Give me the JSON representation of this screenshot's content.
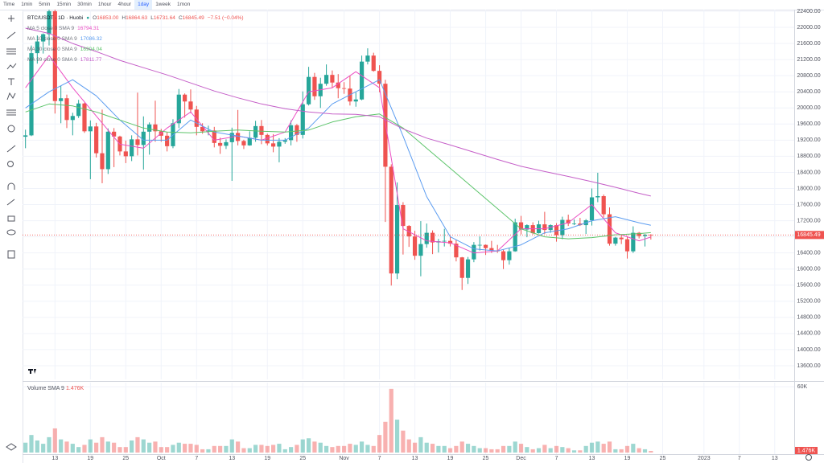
{
  "toolbar": {
    "intervals": [
      "Time",
      "1min",
      "5min",
      "15min",
      "30min",
      "1hour",
      "4hour",
      "1day",
      "1week",
      "1mon"
    ],
    "selected": 7
  },
  "chart_data": {
    "type": "candlestick",
    "title": "BTC/USDT · 1D · Huobi",
    "ohlc": [
      {
        "label": "O",
        "value": "16853.00"
      },
      {
        "label": "H",
        "value": "16864.63"
      },
      {
        "label": "L",
        "value": "16731.64"
      },
      {
        "label": "C",
        "value": "16845.49"
      }
    ],
    "change": "−7.51 (−0.04%)",
    "up_color": "#26a69a",
    "down_color": "#ef5350",
    "open": [
      19285,
      19319,
      21360,
      21650,
      21830,
      22400,
      20170,
      20240,
      19700,
      19800,
      20110,
      19420,
      19540,
      18875,
      18480,
      19410,
      19290,
      18920,
      18800,
      19220,
      19080,
      19410,
      19590,
      19420,
      19310,
      19050,
      19620,
      20330,
      20160,
      19960,
      19530,
      19420,
      19440,
      19130,
      19060,
      19150,
      19380,
      19180,
      19070,
      19260,
      19550,
      19330,
      19120,
      19040,
      19160,
      19200,
      19570,
      19330,
      20090,
      20770,
      20290,
      20600,
      20820,
      20630,
      20490,
      20480,
      20160,
      20210,
      21150,
      21300,
      20920,
      20600,
      18540,
      15890,
      17590,
      17070,
      16810,
      16330,
      16620,
      16900,
      16660,
      16690,
      16700,
      16630,
      16290,
      15780,
      16240,
      16600,
      16600,
      16520,
      16460,
      16440,
      16220,
      16440,
      17160,
      16980,
      17090,
      16890,
      17110,
      16970,
      17090,
      16840,
      17220,
      17130,
      17130,
      17090,
      17210,
      17780,
      17810,
      17360,
      16630,
      16780,
      16740,
      16440,
      16900,
      16820,
      16853
    ],
    "high": [
      19460,
      21550,
      21800,
      21850,
      22490,
      22800,
      20550,
      20330,
      19880,
      20200,
      20130,
      19690,
      19630,
      19960,
      19490,
      19500,
      19310,
      19190,
      19320,
      20380,
      19790,
      19640,
      20180,
      19480,
      19400,
      19720,
      20470,
      20360,
      20460,
      20050,
      19620,
      19560,
      19530,
      19260,
      19220,
      19510,
      19950,
      19210,
      19420,
      19680,
      19700,
      19360,
      19350,
      19250,
      19250,
      19690,
      19600,
      20410,
      21020,
      20870,
      20750,
      21080,
      20930,
      20840,
      20640,
      20800,
      20390,
      21300,
      21480,
      21370,
      21060,
      20700,
      18600,
      18150,
      17660,
      17090,
      16950,
      17190,
      17130,
      16960,
      16750,
      17000,
      16820,
      16730,
      16300,
      16300,
      16670,
      16810,
      16610,
      16700,
      16600,
      16480,
      16530,
      17250,
      17320,
      17110,
      17160,
      17200,
      17420,
      17110,
      17140,
      17300,
      17350,
      17230,
      17270,
      17240,
      18000,
      18390,
      17850,
      17530,
      16800,
      16860,
      16820,
      17060,
      16920,
      16870,
      16864.63
    ],
    "low": [
      19000,
      19300,
      21100,
      21350,
      21550,
      19860,
      19620,
      19500,
      19320,
      19750,
      19380,
      18230,
      18770,
      18130,
      18360,
      18530,
      18820,
      18630,
      18680,
      18820,
      18470,
      18840,
      19160,
      19160,
      18920,
      19000,
      19500,
      19760,
      19870,
      19320,
      19360,
      19320,
      19020,
      18860,
      18980,
      18190,
      19070,
      18980,
      19060,
      19160,
      19100,
      19070,
      18900,
      18650,
      19110,
      19070,
      19160,
      19240,
      20060,
      20200,
      20000,
      20550,
      20500,
      20240,
      20350,
      20060,
      20030,
      20190,
      21080,
      20900,
      20390,
      17170,
      15590,
      15750,
      16360,
      16550,
      16230,
      15820,
      16530,
      16370,
      16410,
      16560,
      16560,
      16190,
      15480,
      15630,
      16170,
      16460,
      16350,
      16400,
      16400,
      16000,
      16110,
      16430,
      16860,
      16790,
      16860,
      16880,
      16870,
      16900,
      16680,
      16740,
      17070,
      17090,
      17070,
      16870,
      17080,
      17660,
      17280,
      16580,
      16580,
      16620,
      16260,
      16400,
      16760,
      16560,
      16731.64
    ],
    "close": [
      19319,
      21360,
      21650,
      21830,
      22400,
      20170,
      20240,
      19700,
      19800,
      20110,
      19420,
      19540,
      18875,
      18480,
      19410,
      19290,
      18920,
      18800,
      19220,
      19080,
      19410,
      19590,
      19420,
      19310,
      19050,
      19620,
      20330,
      20160,
      19960,
      19530,
      19420,
      19440,
      19130,
      19060,
      19150,
      19380,
      19180,
      19070,
      19260,
      19550,
      19330,
      19120,
      19040,
      19160,
      19200,
      19570,
      19330,
      20090,
      20770,
      20290,
      20600,
      20820,
      20630,
      20490,
      20480,
      20160,
      20210,
      21150,
      21300,
      20920,
      20600,
      18540,
      15890,
      17590,
      17070,
      16810,
      16330,
      16620,
      16900,
      16660,
      16690,
      16700,
      16630,
      16290,
      15780,
      16240,
      16600,
      16600,
      16520,
      16460,
      16440,
      16220,
      16440,
      17160,
      16980,
      17090,
      16890,
      17110,
      16970,
      17090,
      16840,
      17220,
      17130,
      17130,
      17090,
      17210,
      17780,
      17810,
      17360,
      16630,
      16780,
      16740,
      16440,
      16900,
      16820,
      16853,
      16845.49
    ],
    "volume": [
      9000,
      16000,
      11000,
      8000,
      14000,
      22000,
      12000,
      10000,
      8000,
      5000,
      7000,
      12000,
      9000,
      14000,
      10000,
      9000,
      5000,
      5000,
      11000,
      14000,
      12000,
      9000,
      10000,
      5000,
      5000,
      7000,
      9000,
      8000,
      8000,
      7000,
      3000,
      3000,
      6000,
      6000,
      6000,
      12000,
      10000,
      4000,
      4000,
      7000,
      7000,
      6000,
      7000,
      8000,
      3000,
      5000,
      7000,
      12000,
      13000,
      10000,
      9000,
      6000,
      5000,
      6000,
      6000,
      8000,
      7000,
      10000,
      7000,
      6000,
      16000,
      28000,
      58000,
      30000,
      20000,
      12000,
      9000,
      14000,
      9000,
      8000,
      6000,
      6000,
      4000,
      6000,
      10000,
      8000,
      6000,
      4000,
      4000,
      3000,
      3000,
      6000,
      6000,
      10000,
      8000,
      5000,
      3000,
      4000,
      7000,
      4000,
      6000,
      5000,
      4000,
      2000,
      2000,
      6000,
      9000,
      10000,
      8000,
      10000,
      3000,
      3000,
      6000,
      8000,
      4000,
      3000,
      1476
    ],
    "volume_sma": {
      "name": "Volume SMA 9",
      "value": "1.476K"
    },
    "series": [
      {
        "name": "MA 5 close 0 SMA 9",
        "color": "#ec4fc3",
        "x": [
          0,
          4,
          8,
          12,
          16,
          20,
          24,
          28,
          32,
          36,
          40,
          44,
          48,
          52,
          56,
          60,
          64,
          68,
          72,
          76,
          80,
          84,
          88,
          92,
          96,
          100,
          104,
          106
        ],
        "values": [
          20500,
          21300,
          20500,
          19800,
          19100,
          19000,
          19500,
          19900,
          19200,
          19300,
          19200,
          19400,
          20400,
          20500,
          20900,
          20500,
          17000,
          16700,
          16650,
          16400,
          16450,
          17000,
          17000,
          17150,
          17600,
          16900,
          16700,
          16794.31
        ]
      },
      {
        "name": "MA 10 close 0 SMA 9",
        "color": "#5b9cf0",
        "x": [
          0,
          4,
          8,
          12,
          16,
          20,
          24,
          28,
          32,
          36,
          40,
          44,
          48,
          52,
          56,
          60,
          64,
          68,
          72,
          76,
          80,
          84,
          88,
          92,
          96,
          100,
          104,
          106
        ],
        "values": [
          20000,
          20400,
          20700,
          20300,
          19700,
          19200,
          19200,
          19700,
          19400,
          19300,
          19200,
          19200,
          19500,
          20100,
          20400,
          20700,
          19300,
          17800,
          16800,
          16500,
          16450,
          16600,
          16900,
          17000,
          17200,
          17300,
          17150,
          17086.32
        ]
      },
      {
        "name": "MA 30 close 0 SMA 9",
        "color": "#5cc46a",
        "x": [
          0,
          4,
          8,
          12,
          16,
          20,
          24,
          28,
          32,
          36,
          40,
          44,
          48,
          52,
          56,
          60,
          64,
          68,
          72,
          76,
          80,
          84,
          88,
          92,
          96,
          100,
          104,
          106
        ],
        "values": [
          19900,
          20100,
          20050,
          19900,
          19700,
          19500,
          19400,
          19380,
          19420,
          19450,
          19420,
          19400,
          19450,
          19650,
          19780,
          19850,
          19500,
          19000,
          18500,
          18000,
          17500,
          17000,
          16800,
          16750,
          16780,
          16850,
          16880,
          16904.04
        ]
      },
      {
        "name": "MA 99 close 0 SMA 9",
        "color": "#c55fc8",
        "x": [
          0,
          4,
          8,
          12,
          16,
          20,
          24,
          28,
          32,
          36,
          40,
          44,
          48,
          52,
          56,
          60,
          64,
          68,
          72,
          76,
          80,
          84,
          88,
          92,
          96,
          100,
          104,
          106
        ],
        "values": [
          21980,
          21850,
          21600,
          21400,
          21180,
          21000,
          20820,
          20620,
          20420,
          20250,
          20100,
          19980,
          19900,
          19850,
          19840,
          19780,
          19480,
          19250,
          19080,
          18900,
          18720,
          18550,
          18420,
          18300,
          18170,
          18030,
          17880,
          17811.77
        ]
      }
    ],
    "xlim": [
      -0.5,
      130.3
    ],
    "xticks": [
      {
        "value": 5,
        "label": "13"
      },
      {
        "value": 11,
        "label": "19"
      },
      {
        "value": 17,
        "label": "25"
      },
      {
        "value": 23,
        "label": "Oct"
      },
      {
        "value": 29,
        "label": "7"
      },
      {
        "value": 35,
        "label": "13"
      },
      {
        "value": 41,
        "label": "19"
      },
      {
        "value": 47,
        "label": "25"
      },
      {
        "value": 54,
        "label": "Nov"
      },
      {
        "value": 60,
        "label": "7"
      },
      {
        "value": 66,
        "label": "13"
      },
      {
        "value": 72,
        "label": "19"
      },
      {
        "value": 78,
        "label": "25"
      },
      {
        "value": 84,
        "label": "Dec"
      },
      {
        "value": 90,
        "label": "7"
      },
      {
        "value": 96,
        "label": "13"
      },
      {
        "value": 102,
        "label": "19"
      },
      {
        "value": 108,
        "label": "25"
      },
      {
        "value": 115,
        "label": "2023"
      },
      {
        "value": 121,
        "label": "7"
      },
      {
        "value": 127,
        "label": "13"
      }
    ],
    "ylim": [
      13260,
      22440
    ],
    "yticks": [
      {
        "value": 13600,
        "label": "13600.00"
      },
      {
        "value": 14000,
        "label": "14000.00"
      },
      {
        "value": 14400,
        "label": "14400.00"
      },
      {
        "value": 14800,
        "label": "14800.00"
      },
      {
        "value": 15200,
        "label": "15200.00"
      },
      {
        "value": 15600,
        "label": "15600.00"
      },
      {
        "value": 16000,
        "label": "16000.00"
      },
      {
        "value": 16400,
        "label": "16400.00"
      },
      {
        "value": 16800,
        "label": "16800.00"
      },
      {
        "value": 17200,
        "label": "17200.00"
      },
      {
        "value": 17600,
        "label": "17600.00"
      },
      {
        "value": 18000,
        "label": "18000.00"
      },
      {
        "value": 18400,
        "label": "18400.00"
      },
      {
        "value": 18800,
        "label": "18800.00"
      },
      {
        "value": 19200,
        "label": "19200.00"
      },
      {
        "value": 19600,
        "label": "19600.00"
      },
      {
        "value": 20000,
        "label": "20000.00"
      },
      {
        "value": 20400,
        "label": "20400.00"
      },
      {
        "value": 20800,
        "label": "20800.00"
      },
      {
        "value": 21200,
        "label": "21200.00"
      },
      {
        "value": 21600,
        "label": "21600.00"
      },
      {
        "value": 22000,
        "label": "22000.00"
      },
      {
        "value": 22400,
        "label": "22400.00"
      }
    ],
    "volume_ylim": [
      0,
      63000
    ],
    "volume_yticks": [
      {
        "value": 60000,
        "label": "60K"
      }
    ],
    "grid": true
  }
}
